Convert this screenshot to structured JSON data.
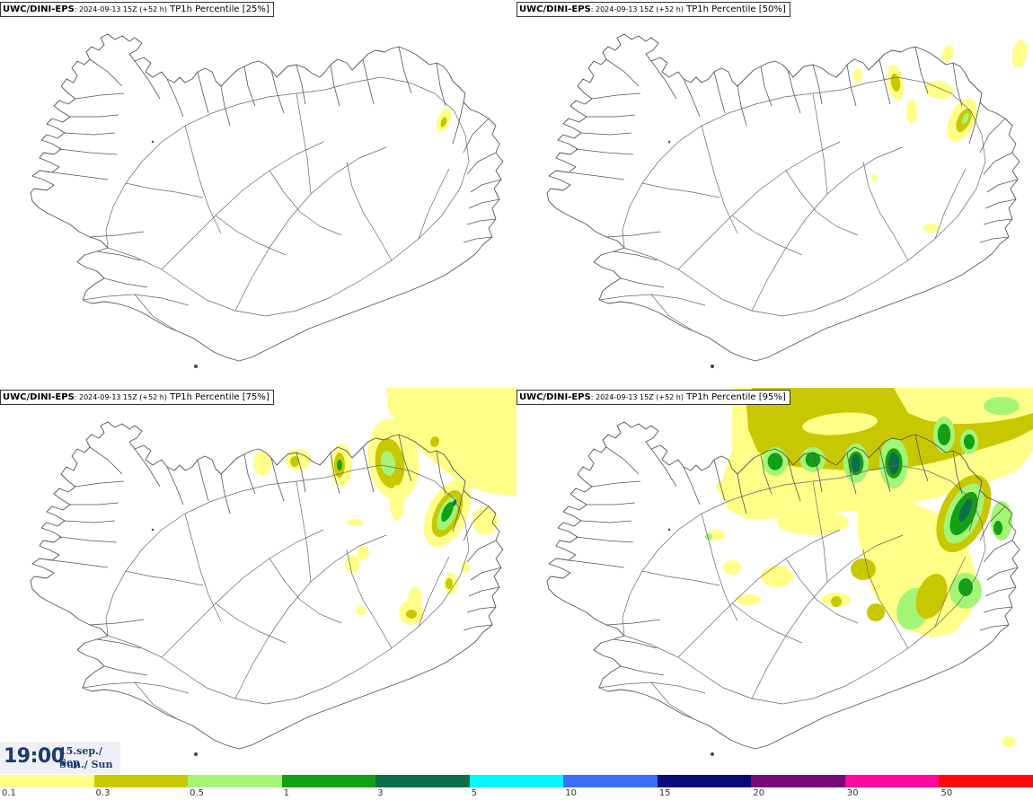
{
  "panels": [
    {
      "model": "UWC/DINI-EPS",
      "run": ": 2024-09-13 15Z (+52 h)",
      "param": " TP1h Percentile [25%]",
      "intensity": 0
    },
    {
      "model": "UWC/DINI-EPS",
      "run": ": 2024-09-13 15Z (+52 h)",
      "param": " TP1h Percentile [50%]",
      "intensity": 1
    },
    {
      "model": "UWC/DINI-EPS",
      "run": ": 2024-09-13 15Z (+52 h)",
      "param": " TP1h Percentile [75%]",
      "intensity": 2
    },
    {
      "model": "UWC/DINI-EPS",
      "run": ": 2024-09-13 15Z (+52 h)",
      "param": " TP1h Percentile [95%]",
      "intensity": 3
    }
  ],
  "time": {
    "clock": "19:00",
    "date_line1": "15.sep./ Sep",
    "date_line2": "Sun./ Sun"
  },
  "legend": {
    "colors": [
      "#fffe88",
      "#c8c800",
      "#a4f575",
      "#14a014",
      "#0f6e4a",
      "#00fafa",
      "#3c6efa",
      "#0a0a78",
      "#780a78",
      "#ff0a9c",
      "#ff0a0a"
    ],
    "labels": [
      "0.1",
      "0.3",
      "0.5",
      "1",
      "3",
      "5",
      "10",
      "15",
      "20",
      "30",
      "50"
    ]
  }
}
